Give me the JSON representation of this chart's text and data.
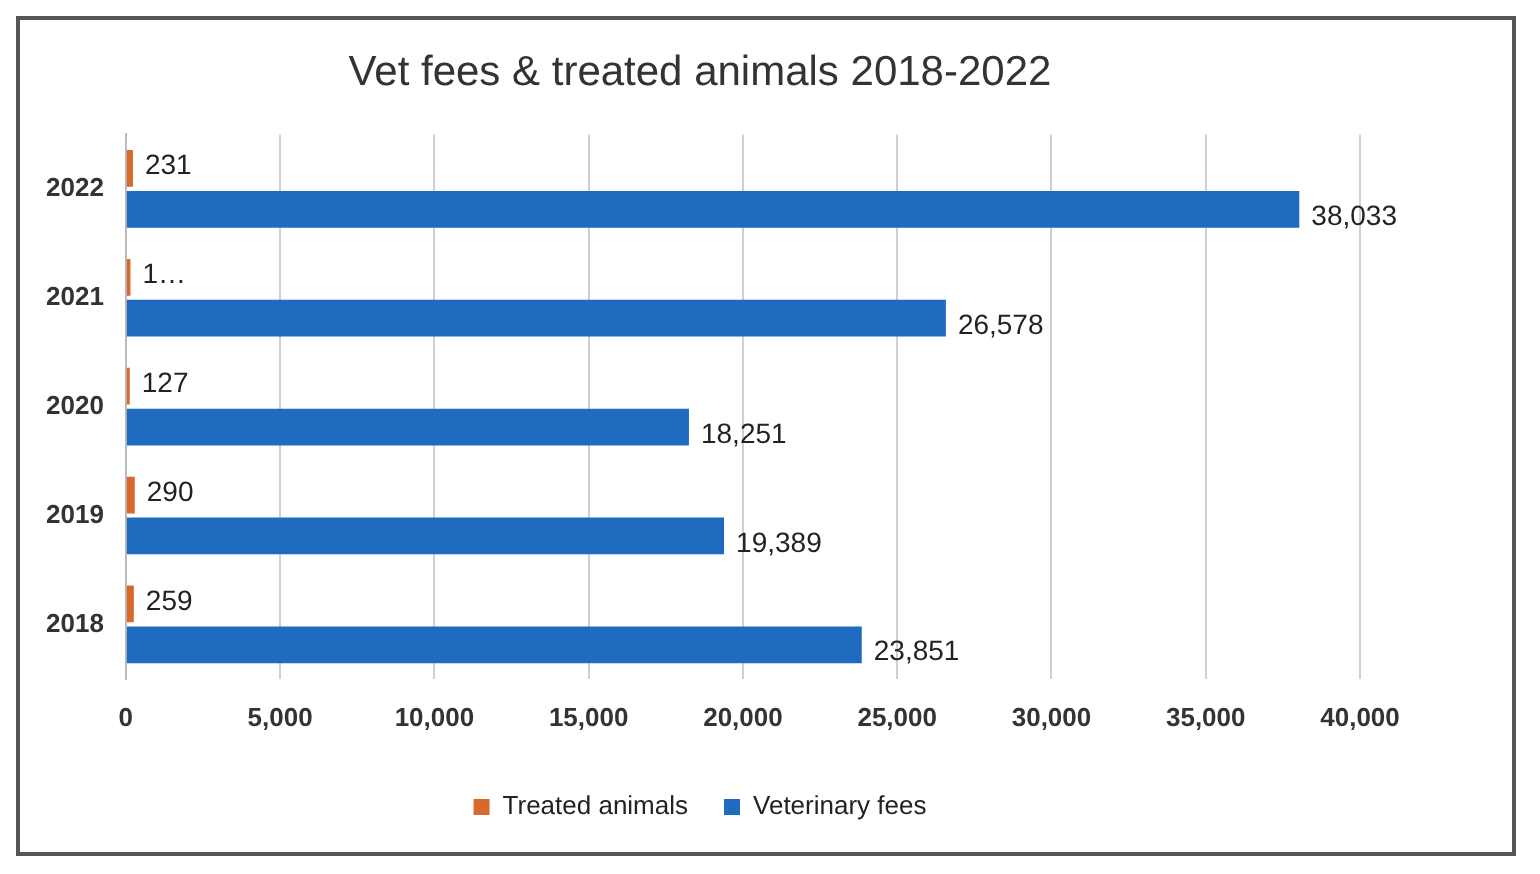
{
  "chart_data": {
    "type": "bar",
    "orientation": "horizontal",
    "title": "Vet fees & treated animals 2018-2022",
    "categories": [
      "2022",
      "2021",
      "2020",
      "2019",
      "2018"
    ],
    "series": [
      {
        "name": "Treated animals",
        "color": "#d9692a",
        "values": [
          231,
          150,
          127,
          290,
          259
        ],
        "value_labels": [
          "231",
          "1…",
          "127",
          "290",
          "259"
        ]
      },
      {
        "name": "Veterinary fees",
        "color": "#1f6bbf",
        "values": [
          38033,
          26578,
          18251,
          19389,
          23851
        ],
        "value_labels": [
          "38,033",
          "26,578",
          "18,251",
          "19,389",
          "23,851"
        ]
      }
    ],
    "xlim": [
      0,
      40000
    ],
    "xticks": [
      0,
      {
        "value": 5000,
        "label": "5,000"
      },
      {
        "value": 10000,
        "label": "10,000"
      },
      {
        "value": 15000,
        "label": "15,000"
      },
      {
        "value": 20000,
        "label": "20,000"
      },
      {
        "value": 25000,
        "label": "25,000"
      },
      {
        "value": 30000,
        "label": "30,000"
      },
      {
        "value": 35000,
        "label": "35,000"
      },
      {
        "value": 40000,
        "label": "40,000"
      }
    ],
    "grid": "x",
    "legend": "bottom"
  }
}
